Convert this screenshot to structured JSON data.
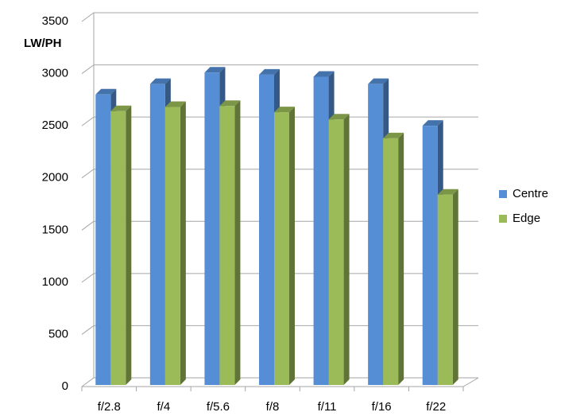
{
  "chart_data": {
    "type": "bar3d",
    "y_label": "LW/PH",
    "categories": [
      "f/2.8",
      "f/4",
      "f/5.6",
      "f/8",
      "f/11",
      "f/16",
      "f/22"
    ],
    "series": [
      {
        "name": "Centre",
        "color": "#558ed5",
        "values": [
          2800,
          2900,
          3010,
          2990,
          2970,
          2900,
          2500
        ]
      },
      {
        "name": "Edge",
        "color": "#9bbb59",
        "values": [
          2640,
          2680,
          2690,
          2630,
          2560,
          2380,
          1840
        ]
      }
    ],
    "ylim": [
      0,
      3500
    ],
    "yticks": [
      0,
      500,
      1000,
      1500,
      2000,
      2500,
      3000,
      3500
    ],
    "grid": true,
    "legend": "right"
  }
}
